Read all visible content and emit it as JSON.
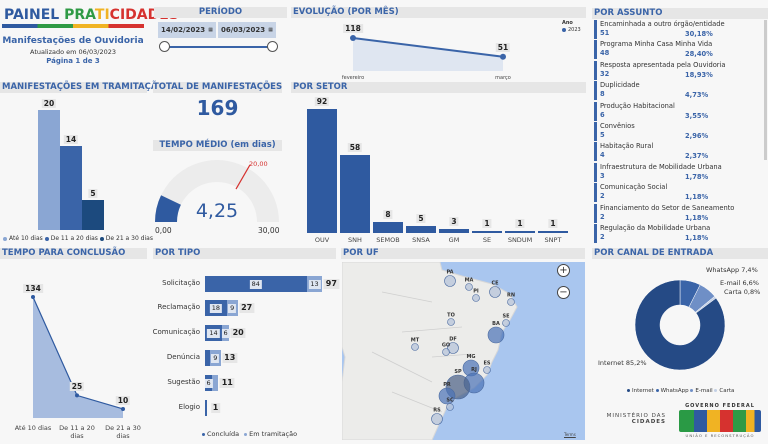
{
  "header": {
    "brand_a": "PAINEL ",
    "brand_b": "PRA",
    "brand_c": "TI",
    "brand_d": "CIDADES",
    "subtitle": "Manifestações de Ouvidoria",
    "updated": "Atualizado em 06/03/2023",
    "page": "Página 1 de 3"
  },
  "periodo": {
    "title": "PERÍODO",
    "start": "14/02/2023",
    "end": "06/03/2023"
  },
  "evolucao": {
    "title": "EVOLUÇÃO (POR MÊS)",
    "legend_title": "Ano",
    "legend_item": "2023",
    "color": "#3a64a8",
    "chart_data": {
      "type": "line",
      "categories": [
        "fevereiro",
        "março"
      ],
      "values": [
        118,
        51
      ],
      "series": [
        {
          "name": "2023",
          "values": [
            118,
            51
          ]
        }
      ]
    }
  },
  "assunto": {
    "title": "POR ASSUNTO",
    "items": [
      {
        "label": "Encaminhada a outro órgão/entidade",
        "count": "51",
        "pct": "30,18%"
      },
      {
        "label": "Programa Minha Casa Minha Vida",
        "count": "48",
        "pct": "28,40%"
      },
      {
        "label": "Resposta apresentada pela Ouvidoria",
        "count": "32",
        "pct": "18,93%"
      },
      {
        "label": "Duplicidade",
        "count": "8",
        "pct": "4,73%"
      },
      {
        "label": "Produção Habitacional",
        "count": "6",
        "pct": "3,55%"
      },
      {
        "label": "Convênios",
        "count": "5",
        "pct": "2,96%"
      },
      {
        "label": "Habitação Rural",
        "count": "4",
        "pct": "2,37%"
      },
      {
        "label": "Infraestrutura de Mobilidade Urbana",
        "count": "3",
        "pct": "1,78%"
      },
      {
        "label": "Comunicação Social",
        "count": "2",
        "pct": "1,18%"
      },
      {
        "label": "Financiamento do Setor de Saneamento",
        "count": "2",
        "pct": "1,18%"
      },
      {
        "label": "Regulação da Mobilidade Urbana",
        "count": "2",
        "pct": "1,18%"
      }
    ]
  },
  "tramitacao": {
    "title": "MANIFESTAÇÕES EM TRAMITAÇÃO",
    "chart_data": {
      "type": "bar",
      "categories": [
        "Até 10 dias",
        "De 11 a 20 dias",
        "De 21 a 30 dias"
      ],
      "values": [
        20,
        14,
        5
      ],
      "colors": [
        "#8aa6d3",
        "#3a64a8",
        "#1c4a7e"
      ]
    }
  },
  "total": {
    "title": "TOTAL DE MANIFESTAÇÕES",
    "value": "169"
  },
  "tempo_medio": {
    "title": "TEMPO MÉDIO (em dias)",
    "value": "4,25",
    "min": "0,00",
    "max": "30,00",
    "target": "20,00",
    "chart_data": {
      "type": "gauge",
      "value": 4.25,
      "min": 0,
      "max": 30,
      "target": 20
    }
  },
  "setor": {
    "title": "POR SETOR",
    "chart_data": {
      "type": "bar",
      "categories": [
        "OUV",
        "SNH",
        "SEMOB",
        "SNSA",
        "GM",
        "SE",
        "SNDUM",
        "SNPT"
      ],
      "values": [
        92,
        58,
        8,
        5,
        3,
        1,
        1,
        1
      ]
    }
  },
  "conclusao": {
    "title": "TEMPO PARA CONCLUSÃO",
    "chart_data": {
      "type": "area",
      "categories": [
        "Até 10 dias",
        "De 11 a 20 dias",
        "De 21 a 30 dias"
      ],
      "values": [
        134,
        25,
        10
      ]
    }
  },
  "tipo": {
    "title": "POR TIPO",
    "legend": [
      "Concluída",
      "Em tramitação"
    ],
    "colors": [
      "#3a64a8",
      "#8aa6d3"
    ],
    "chart_data": {
      "type": "stacked-bar",
      "categories": [
        "Solicitação",
        "Reclamação",
        "Comunicação",
        "Denúncia",
        "Sugestão",
        "Elogio"
      ],
      "series": [
        {
          "name": "Concluída",
          "values": [
            84,
            18,
            14,
            4,
            6,
            1
          ]
        },
        {
          "name": "Em tramitação",
          "values": [
            13,
            9,
            6,
            9,
            5,
            0
          ]
        }
      ],
      "totals": [
        97,
        27,
        20,
        13,
        11,
        1
      ],
      "shown_labels": [
        [
          "84",
          "13"
        ],
        [
          "18",
          "9"
        ],
        [
          "14",
          "6"
        ],
        [
          "",
          "9"
        ],
        [
          "6",
          ""
        ],
        [
          "",
          ""
        ]
      ]
    }
  },
  "uf": {
    "title": "POR UF",
    "zoom_in": "+",
    "zoom_out": "−",
    "attribution": "Terms",
    "states": [
      {
        "uf": "PA",
        "level": 2
      },
      {
        "uf": "MA",
        "level": 1
      },
      {
        "uf": "PI",
        "level": 1
      },
      {
        "uf": "CE",
        "level": 2
      },
      {
        "uf": "RN",
        "level": 1
      },
      {
        "uf": "SE",
        "level": 1
      },
      {
        "uf": "BA",
        "level": 3
      },
      {
        "uf": "TO",
        "level": 1
      },
      {
        "uf": "MT",
        "level": 1
      },
      {
        "uf": "DF",
        "level": 2
      },
      {
        "uf": "GO",
        "level": 1
      },
      {
        "uf": "MG",
        "level": 3
      },
      {
        "uf": "ES",
        "level": 1
      },
      {
        "uf": "RJ",
        "level": 4
      },
      {
        "uf": "SP",
        "level": 5
      },
      {
        "uf": "PR",
        "level": 3
      },
      {
        "uf": "SC",
        "level": 1
      },
      {
        "uf": "RS",
        "level": 2
      }
    ]
  },
  "canal": {
    "title": "POR CANAL DE ENTRADA",
    "chart_data": {
      "type": "pie",
      "categories": [
        "WhatsApp",
        "E-mail",
        "Carta",
        "Internet"
      ],
      "values": [
        7.4,
        6.6,
        0.8,
        85.2
      ],
      "labels": [
        "WhatsApp 7,4%",
        "E-mail 6,6%",
        "Carta 0,8%",
        "Internet 85,2%"
      ],
      "colors": [
        "#3a64a8",
        "#6f8fc6",
        "#c3d0e6",
        "#254a85"
      ]
    },
    "legend": [
      "Internet",
      "WhatsApp",
      "E-mail",
      "Carta"
    ]
  },
  "footer": {
    "ministerio_a": "MINISTÉRIO DAS",
    "ministerio_b": "CIDADES",
    "gov_a": "GOVERNO FEDERAL",
    "gov_logo": "BRASIL",
    "gov_b": "UNIÃO E RECONSTRUÇÃO"
  }
}
